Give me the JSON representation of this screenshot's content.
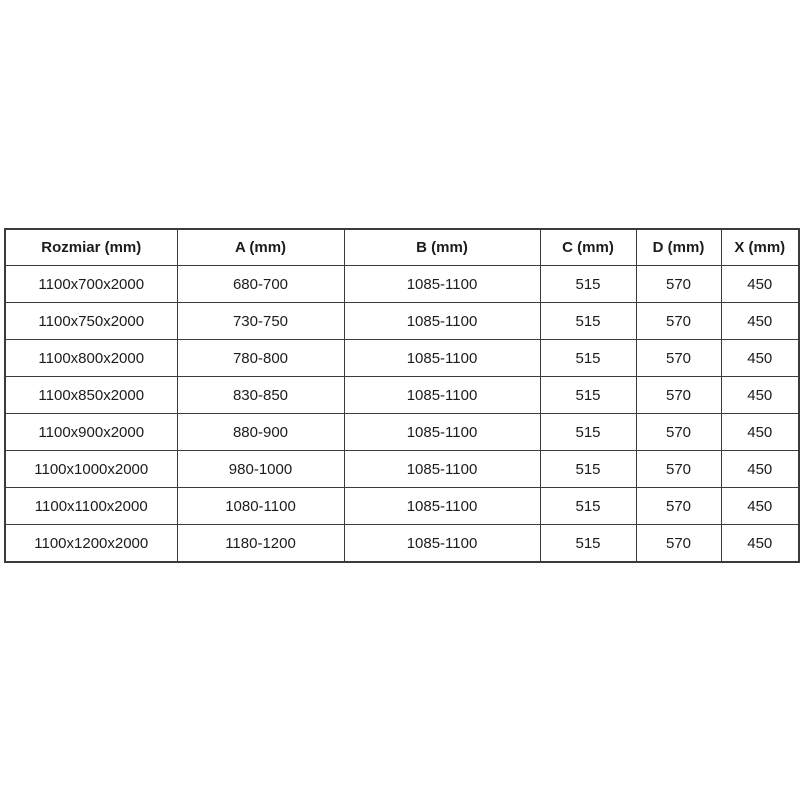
{
  "colors": {
    "background": "#ffffff",
    "table_border": "#3b3b3b",
    "text": "#1c1c1c"
  },
  "table": {
    "columns": [
      "Rozmiar (mm)",
      "A (mm)",
      "B (mm)",
      "C (mm)",
      "D (mm)",
      "X (mm)"
    ],
    "rows": [
      [
        "1100x700x2000",
        "680-700",
        "1085-1100",
        "515",
        "570",
        "450"
      ],
      [
        "1100x750x2000",
        "730-750",
        "1085-1100",
        "515",
        "570",
        "450"
      ],
      [
        "1100x800x2000",
        "780-800",
        "1085-1100",
        "515",
        "570",
        "450"
      ],
      [
        "1100x850x2000",
        "830-850",
        "1085-1100",
        "515",
        "570",
        "450"
      ],
      [
        "1100x900x2000",
        "880-900",
        "1085-1100",
        "515",
        "570",
        "450"
      ],
      [
        "1100x1000x2000",
        "980-1000",
        "1085-1100",
        "515",
        "570",
        "450"
      ],
      [
        "1100x1100x2000",
        "1080-1100",
        "1085-1100",
        "515",
        "570",
        "450"
      ],
      [
        "1100x1200x2000",
        "1180-1200",
        "1085-1100",
        "515",
        "570",
        "450"
      ]
    ]
  }
}
